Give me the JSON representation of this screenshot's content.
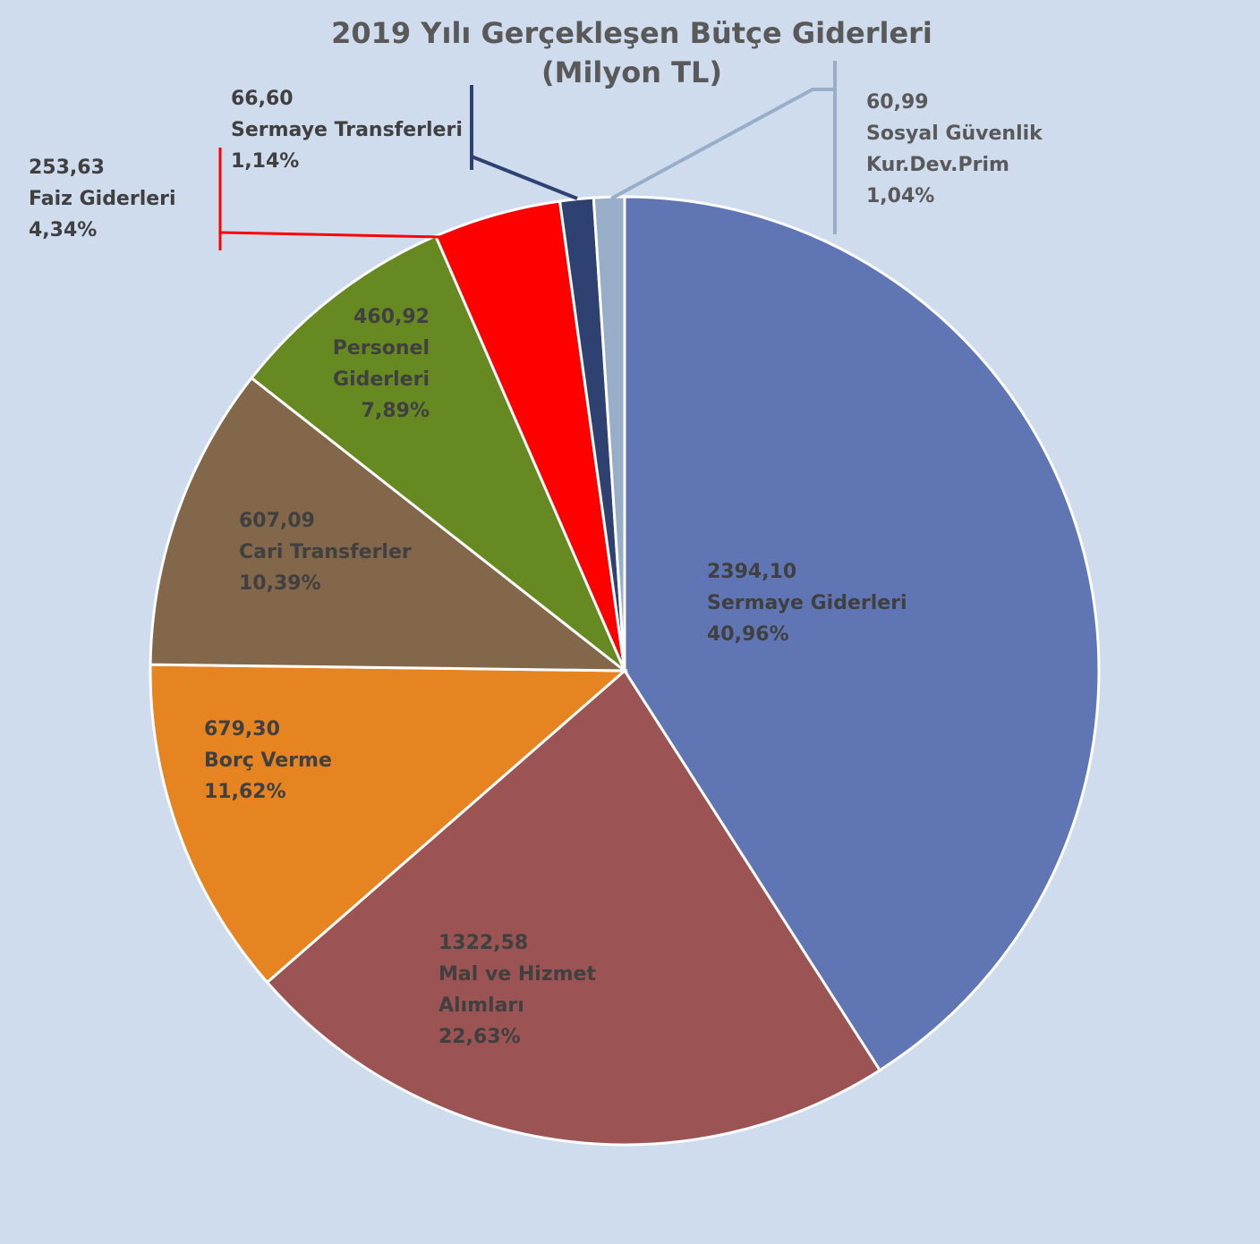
{
  "chart_data": {
    "type": "pie",
    "title": "2019 Yılı Gerçekleşen Bütçe Giderleri",
    "subtitle": "(Milyon TL)",
    "categories": [
      "Sermaye Giderleri",
      "Mal ve Hizmet Alımları",
      "Borç Verme",
      "Cari Transferler",
      "Personel Giderleri",
      "Faiz Giderleri",
      "Sermaye Transferleri",
      "Sosyal Güvenlik Kur.Dev.Prim"
    ],
    "values": [
      2394.1,
      1322.58,
      679.3,
      607.09,
      460.92,
      253.63,
      66.6,
      60.99
    ],
    "value_labels": [
      "2394,10",
      "1322,58",
      "679,30",
      "607,09",
      "460,92",
      "253,63",
      "66,60",
      "60,99"
    ],
    "percentages": [
      40.96,
      22.63,
      11.62,
      10.39,
      7.89,
      4.34,
      1.14,
      1.04
    ],
    "percentage_labels": [
      "40,96%",
      "22,63%",
      "11,62%",
      "10,39%",
      "7,89%",
      "4,34%",
      "1,14%",
      "1,04%"
    ],
    "colors": [
      "#6076b4",
      "#9c5353",
      "#e68422",
      "#83674a",
      "#668a21",
      "#ff0000",
      "#2e4170",
      "#98aec8"
    ]
  }
}
